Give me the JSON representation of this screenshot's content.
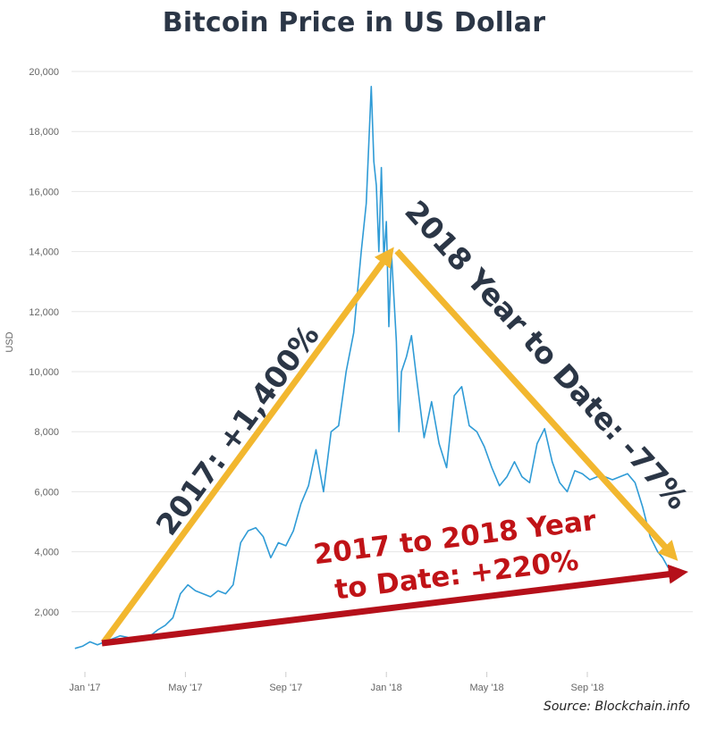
{
  "chart_data": {
    "type": "line",
    "title": "Bitcoin Price in US Dollar",
    "ylabel": "USD",
    "xlabel": "",
    "ylim": [
      0,
      20000
    ],
    "y_ticks": [
      "2,000",
      "4,000",
      "6,000",
      "8,000",
      "10,000",
      "12,000",
      "14,000",
      "16,000",
      "18,000",
      "20,000"
    ],
    "y_tick_values": [
      2000,
      4000,
      6000,
      8000,
      10000,
      12000,
      14000,
      16000,
      18000,
      20000
    ],
    "x_ticks": [
      "Jan '17",
      "May '17",
      "Sep '17",
      "Jan '18",
      "May '18",
      "Sep '18"
    ],
    "x_tick_months": [
      0,
      4,
      8,
      12,
      16,
      20
    ],
    "grid": true,
    "series_color": "#2f9bd6",
    "series": [
      {
        "month": [
          -0.4,
          -0.1,
          0.2,
          0.5,
          0.8,
          1.1,
          1.4,
          1.7,
          2.0,
          2.3,
          2.6,
          2.9,
          3.2,
          3.5,
          3.8,
          4.1,
          4.4,
          4.7,
          5.0,
          5.3,
          5.6,
          5.9,
          6.2,
          6.5,
          6.8,
          7.1,
          7.4,
          7.7,
          8.0,
          8.3,
          8.6,
          8.9,
          9.2,
          9.5,
          9.8,
          10.1,
          10.4,
          10.7,
          11.0,
          11.2,
          11.4,
          11.5,
          11.6,
          11.7,
          11.8,
          11.9,
          12.0,
          12.1,
          12.2,
          12.3,
          12.4,
          12.5,
          12.6,
          12.8,
          13.0,
          13.2,
          13.5,
          13.8,
          14.1,
          14.4,
          14.7,
          15.0,
          15.3,
          15.6,
          15.9,
          16.2,
          16.5,
          16.8,
          17.1,
          17.4,
          17.7,
          18.0,
          18.3,
          18.6,
          18.9,
          19.2,
          19.5,
          19.8,
          20.1,
          20.4,
          20.7,
          21.0,
          21.3,
          21.6,
          21.9,
          22.2,
          22.5,
          22.8,
          23.0,
          23.2,
          23.4
        ],
        "values": [
          780,
          850,
          1000,
          900,
          1000,
          1100,
          1200,
          1150,
          1000,
          1100,
          1200,
          1400,
          1550,
          1800,
          2600,
          2900,
          2700,
          2600,
          2500,
          2700,
          2600,
          2900,
          4300,
          4700,
          4800,
          4500,
          3800,
          4300,
          4200,
          4700,
          5600,
          6200,
          7400,
          6000,
          8000,
          8200,
          10000,
          11300,
          14000,
          15600,
          19500,
          17000,
          16200,
          14000,
          16800,
          13800,
          15000,
          11500,
          14000,
          12500,
          11000,
          8000,
          10000,
          10500,
          11200,
          9800,
          7800,
          9000,
          7600,
          6800,
          9200,
          9500,
          8200,
          8000,
          7500,
          6800,
          6200,
          6500,
          7000,
          6500,
          6300,
          7600,
          8100,
          7000,
          6300,
          6000,
          6700,
          6600,
          6400,
          6500,
          6500,
          6400,
          6500,
          6600,
          6300,
          5500,
          4500,
          4000,
          3800,
          3500,
          3300
        ]
      }
    ],
    "annotations": [
      {
        "text": "2017: +1,400%",
        "color": "#2b3646"
      },
      {
        "text": "2018 Year to Date: -77%",
        "color": "#2b3646"
      },
      {
        "text": "2017 to 2018 Year",
        "color": "#c01317"
      },
      {
        "text": "to Date: +220%",
        "color": "#c01317"
      }
    ],
    "arrow_colors": {
      "up": "#f2b72f",
      "down": "#f2b72f",
      "overall": "#b5101a"
    },
    "source": "Source: Blockchain.info"
  }
}
